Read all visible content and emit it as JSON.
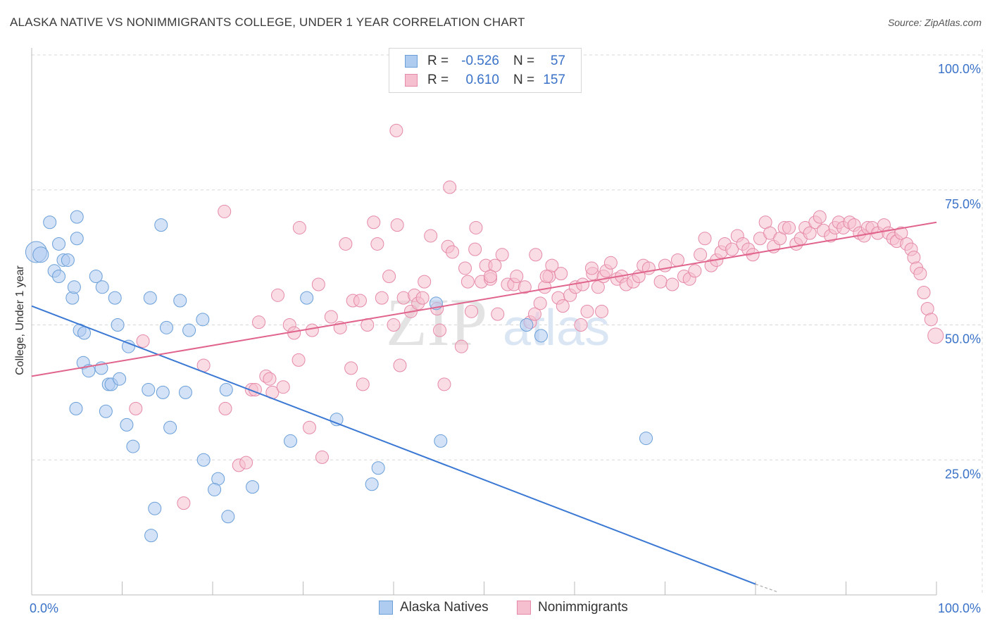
{
  "title": "ALASKA NATIVE VS NONIMMIGRANTS COLLEGE, UNDER 1 YEAR CORRELATION CHART",
  "source": "Source: ZipAtlas.com",
  "watermark": {
    "zip": "ZIP",
    "atlas": "atlas"
  },
  "legend": {
    "rows": [
      {
        "r_label": "R =",
        "r_value": "-0.526",
        "n_label": "N =",
        "n_value": "57"
      },
      {
        "r_label": "R =",
        "r_value": "0.610",
        "n_label": "N =",
        "n_value": "157"
      }
    ]
  },
  "bottom_legend": [
    "Alaska Natives",
    "Nonimmigrants"
  ],
  "colors": {
    "blue_fill": "#aecbf0",
    "blue_stroke": "#6a9fd8",
    "blue_line": "#3a78d4",
    "pink_fill": "#f6bfd0",
    "pink_stroke": "#e58aa8",
    "pink_line": "#e0648c",
    "tick_label": "#3a72c8",
    "grid": "#d8d8d8"
  },
  "chart_data": {
    "type": "scatter",
    "title": "ALASKA NATIVE VS NONIMMIGRANTS COLLEGE, UNDER 1 YEAR CORRELATION CHART",
    "xlabel": "",
    "ylabel": "College, Under 1 year",
    "xlim": [
      0,
      100
    ],
    "ylim": [
      0,
      100
    ],
    "x_tick_labels": [
      "0.0%",
      "100.0%"
    ],
    "y_ticks": [
      25,
      50,
      75,
      100
    ],
    "y_tick_labels": [
      "25.0%",
      "50.0%",
      "75.0%",
      "100.0%"
    ],
    "grid": true,
    "legend_position": "top-center",
    "series": [
      {
        "name": "Alaska Natives",
        "r": -0.526,
        "n": 57,
        "trend": {
          "x": [
            0,
            80
          ],
          "y": [
            53.5,
            2.0
          ]
        },
        "trend_dashed": {
          "x": [
            80,
            82.5
          ],
          "y": [
            2.0,
            0.5
          ]
        },
        "points": [
          [
            0.5,
            63.5,
            14
          ],
          [
            1,
            63,
            10
          ],
          [
            2,
            69,
            8
          ],
          [
            2.5,
            60,
            8
          ],
          [
            3,
            65,
            8
          ],
          [
            3.5,
            62,
            8
          ],
          [
            3,
            59,
            8
          ],
          [
            4,
            62,
            8
          ],
          [
            5,
            70,
            8
          ],
          [
            5,
            66,
            8
          ],
          [
            4.5,
            55,
            8
          ],
          [
            4.7,
            57,
            8
          ],
          [
            5.3,
            49,
            8
          ],
          [
            5.8,
            48.5,
            8
          ],
          [
            5.7,
            43,
            8
          ],
          [
            6.3,
            41.5,
            8
          ],
          [
            7.1,
            59,
            8
          ],
          [
            7.7,
            42,
            8
          ],
          [
            7.8,
            57,
            8
          ],
          [
            8.5,
            39,
            8
          ],
          [
            8.8,
            39,
            8
          ],
          [
            9.2,
            55,
            8
          ],
          [
            9.5,
            50,
            8
          ],
          [
            9.7,
            40,
            8
          ],
          [
            4.9,
            34.5,
            8
          ],
          [
            8.2,
            34,
            8
          ],
          [
            10.7,
            46,
            8
          ],
          [
            10.5,
            31.5,
            8
          ],
          [
            11.2,
            27.5,
            8
          ],
          [
            12.9,
            38,
            8
          ],
          [
            13.1,
            55,
            8
          ],
          [
            14.3,
            68.5,
            8
          ],
          [
            14.5,
            37.5,
            8
          ],
          [
            14.9,
            49.5,
            8
          ],
          [
            15.3,
            31,
            8
          ],
          [
            16.4,
            54.5,
            8
          ],
          [
            17,
            37.5,
            8
          ],
          [
            17.4,
            49,
            8
          ],
          [
            18.9,
            51,
            8
          ],
          [
            19,
            25,
            8
          ],
          [
            20.6,
            21.5,
            8
          ],
          [
            20.2,
            19.5,
            8
          ],
          [
            21.5,
            38,
            8
          ],
          [
            21.7,
            14.5,
            8
          ],
          [
            24.4,
            20,
            8
          ],
          [
            13.6,
            16,
            8
          ],
          [
            13.2,
            11,
            8
          ],
          [
            28.6,
            28.5,
            8
          ],
          [
            30.4,
            55,
            8
          ],
          [
            33.7,
            32.5,
            8
          ],
          [
            37.6,
            20.5,
            8
          ],
          [
            38.3,
            23.5,
            8
          ],
          [
            44.7,
            54,
            8
          ],
          [
            45.2,
            28.5,
            8
          ],
          [
            54.7,
            50,
            8
          ],
          [
            56.3,
            48,
            8
          ],
          [
            67.9,
            29,
            8
          ]
        ]
      },
      {
        "name": "Nonimmigrants",
        "r": 0.61,
        "n": 157,
        "trend": {
          "x": [
            0,
            100
          ],
          "y": [
            40.5,
            69
          ]
        },
        "points": [
          [
            12.3,
            47,
            8
          ],
          [
            11.5,
            34.5,
            8
          ],
          [
            16.8,
            17,
            8
          ],
          [
            19,
            42.5,
            8
          ],
          [
            21.3,
            71,
            8
          ],
          [
            21.4,
            34.5,
            8
          ],
          [
            22.9,
            24,
            8
          ],
          [
            23.7,
            24.5,
            8
          ],
          [
            24.3,
            38,
            8
          ],
          [
            24.7,
            38,
            8
          ],
          [
            25.1,
            50.5,
            8
          ],
          [
            25.9,
            40.5,
            8
          ],
          [
            26.3,
            40,
            8
          ],
          [
            26.6,
            37.5,
            8
          ],
          [
            27.2,
            55.5,
            8
          ],
          [
            27.8,
            38.5,
            8
          ],
          [
            28.5,
            50,
            8
          ],
          [
            29,
            48.5,
            8
          ],
          [
            29.5,
            43.5,
            8
          ],
          [
            29.6,
            68,
            8
          ],
          [
            30.7,
            31,
            8
          ],
          [
            31,
            49,
            8
          ],
          [
            31.7,
            57.5,
            8
          ],
          [
            32.1,
            25.5,
            8
          ],
          [
            33.1,
            51.5,
            8
          ],
          [
            34.1,
            49.5,
            8
          ],
          [
            34.7,
            65,
            8
          ],
          [
            35.3,
            42,
            8
          ],
          [
            35.5,
            54.5,
            8
          ],
          [
            36.3,
            54.5,
            8
          ],
          [
            36.6,
            39,
            8
          ],
          [
            37.1,
            50,
            8
          ],
          [
            37.8,
            69,
            8
          ],
          [
            38.2,
            65,
            8
          ],
          [
            38.7,
            55,
            8
          ],
          [
            39.5,
            59,
            8
          ],
          [
            40,
            50,
            8
          ],
          [
            40.4,
            68.5,
            8
          ],
          [
            40.7,
            42.5,
            8
          ],
          [
            41.1,
            55,
            8
          ],
          [
            41.9,
            52.5,
            8
          ],
          [
            42.3,
            55.5,
            8
          ],
          [
            42.7,
            54,
            8
          ],
          [
            43.2,
            55,
            8
          ],
          [
            43.4,
            58,
            8
          ],
          [
            44.1,
            66.5,
            8
          ],
          [
            44.8,
            53,
            8
          ],
          [
            45.1,
            49,
            8
          ],
          [
            45.6,
            39,
            8
          ],
          [
            46,
            64.5,
            8
          ],
          [
            46.5,
            63.5,
            8
          ],
          [
            47.5,
            46,
            8
          ],
          [
            47.9,
            60.5,
            8
          ],
          [
            48.2,
            58,
            8
          ],
          [
            48.6,
            52.5,
            8
          ],
          [
            49,
            64,
            8
          ],
          [
            49.1,
            68,
            8
          ],
          [
            49.7,
            58,
            8
          ],
          [
            50.2,
            61,
            8
          ],
          [
            50.7,
            58.5,
            8
          ],
          [
            51.2,
            61,
            8
          ],
          [
            52,
            63,
            8
          ],
          [
            52.6,
            57.5,
            8
          ],
          [
            53.3,
            57.5,
            8
          ],
          [
            53.6,
            59,
            8
          ],
          [
            54.5,
            57,
            8
          ],
          [
            55.1,
            50.5,
            8
          ],
          [
            55.6,
            52,
            8
          ],
          [
            56.2,
            54,
            8
          ],
          [
            56.7,
            57,
            8
          ],
          [
            57.2,
            59,
            8
          ],
          [
            58.2,
            55,
            8
          ],
          [
            58.5,
            59.5,
            8
          ],
          [
            59.5,
            55.5,
            8
          ],
          [
            60.1,
            57,
            8
          ],
          [
            60.9,
            57.5,
            8
          ],
          [
            61.4,
            52.5,
            8
          ],
          [
            62,
            59.5,
            8
          ],
          [
            62.6,
            57,
            8
          ],
          [
            63.2,
            59,
            8
          ],
          [
            63.5,
            60,
            8
          ],
          [
            64,
            61.5,
            8
          ],
          [
            64.7,
            58.5,
            8
          ],
          [
            65.2,
            59,
            8
          ],
          [
            65.7,
            57.5,
            8
          ],
          [
            66.5,
            58,
            8
          ],
          [
            67.1,
            59,
            8
          ],
          [
            67.6,
            61,
            8
          ],
          [
            68.2,
            60.5,
            8
          ],
          [
            69.5,
            58,
            8
          ],
          [
            70,
            61,
            8
          ],
          [
            70.8,
            57.5,
            8
          ],
          [
            71.4,
            62,
            8
          ],
          [
            72.1,
            59,
            8
          ],
          [
            72.7,
            58.5,
            8
          ],
          [
            73.3,
            60,
            8
          ],
          [
            73.9,
            63,
            8
          ],
          [
            74.4,
            66,
            8
          ],
          [
            75.1,
            61,
            8
          ],
          [
            75.7,
            62,
            8
          ],
          [
            76.2,
            63.5,
            8
          ],
          [
            76.6,
            65,
            8
          ],
          [
            77.4,
            64,
            8
          ],
          [
            78,
            66.5,
            8
          ],
          [
            78.6,
            65,
            8
          ],
          [
            79.2,
            64,
            8
          ],
          [
            79.7,
            63,
            8
          ],
          [
            80.5,
            66,
            8
          ],
          [
            81.1,
            69,
            8
          ],
          [
            81.6,
            67,
            8
          ],
          [
            82,
            64.5,
            8
          ],
          [
            82.7,
            66,
            8
          ],
          [
            83.2,
            68,
            8
          ],
          [
            83.7,
            68,
            8
          ],
          [
            84.5,
            65,
            8
          ],
          [
            85,
            66,
            8
          ],
          [
            85.5,
            68,
            8
          ],
          [
            86,
            67,
            8
          ],
          [
            86.6,
            69,
            8
          ],
          [
            87.1,
            70,
            8
          ],
          [
            87.5,
            67.5,
            8
          ],
          [
            88.3,
            66.5,
            8
          ],
          [
            88.8,
            68,
            8
          ],
          [
            89.2,
            69,
            8
          ],
          [
            89.7,
            68,
            8
          ],
          [
            90.4,
            69,
            8
          ],
          [
            90.9,
            68.5,
            8
          ],
          [
            91.5,
            67,
            8
          ],
          [
            92,
            66.5,
            8
          ],
          [
            92.4,
            68,
            8
          ],
          [
            92.9,
            68,
            8
          ],
          [
            93.5,
            67,
            8
          ],
          [
            94.2,
            68.5,
            8
          ],
          [
            94.7,
            67,
            8
          ],
          [
            95.2,
            66,
            8
          ],
          [
            95.6,
            65.5,
            8
          ],
          [
            96.1,
            67,
            8
          ],
          [
            96.7,
            65,
            8
          ],
          [
            97.2,
            64,
            8
          ],
          [
            97.5,
            62.5,
            8
          ],
          [
            97.8,
            60.5,
            8
          ],
          [
            98.2,
            59.5,
            8
          ],
          [
            98.6,
            56,
            8
          ],
          [
            99,
            53,
            8
          ],
          [
            99.4,
            51,
            8
          ],
          [
            99.9,
            48,
            10
          ],
          [
            40.3,
            86,
            8
          ],
          [
            46.2,
            75.5,
            8
          ],
          [
            50.7,
            59,
            8
          ],
          [
            51.5,
            52,
            8
          ],
          [
            55.7,
            63,
            8
          ],
          [
            57.5,
            61,
            8
          ],
          [
            58.7,
            53.5,
            8
          ],
          [
            60.7,
            50,
            8
          ],
          [
            61.9,
            60.5,
            8
          ],
          [
            63,
            52.5,
            8
          ],
          [
            56.9,
            59,
            8
          ]
        ]
      }
    ]
  }
}
